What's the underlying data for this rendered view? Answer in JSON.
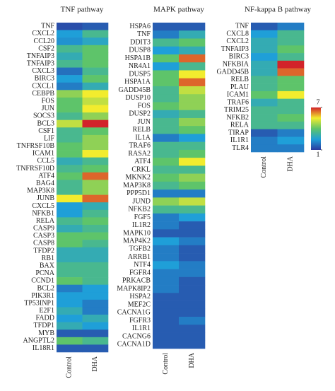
{
  "chart_data": [
    {
      "type": "heatmap",
      "title": "TNF pathway",
      "categories": [
        "TNF",
        "CXCL2",
        "CCL20",
        "CSF2",
        "TNFAIP3",
        "TNFAIP3",
        "CXCL3",
        "BIRC3",
        "CXCL1",
        "CEBPB",
        "FOS",
        "JUN",
        "SOCS3",
        "BCL3",
        "CSF1",
        "LIF",
        "TNFRSF10B",
        "ICAM1",
        "CCL5",
        "TNFRSF10D",
        "ATF4",
        "BAG4",
        "MAP3K8",
        "JUNB",
        "CXCL5",
        "NFKB1",
        "RELA",
        "CASP9",
        "CASP3",
        "CASP8",
        "TFDP2",
        "RB1",
        "BAX",
        "PCNA",
        "CCND1",
        "BCL2",
        "PIK3R1",
        "TP53INP1",
        "E2F1",
        "FADD",
        "TFDP1",
        "MYB",
        "ANGPTL2",
        "IL18R1"
      ],
      "series": [
        {
          "name": "Control",
          "values": [
            1.3,
            2.5,
            2.3,
            3.5,
            3,
            3.5,
            1.8,
            2.5,
            2,
            4.5,
            4,
            4,
            3.5,
            5,
            3.5,
            3.5,
            4,
            4,
            3,
            3.5,
            4,
            3.5,
            3.5,
            5.5,
            2.5,
            2.5,
            3.5,
            3,
            4,
            4,
            3,
            3,
            3.5,
            3.5,
            4,
            2,
            2.5,
            2.5,
            3,
            2.5,
            3,
            1.5,
            4,
            1.5
          ]
        },
        {
          "name": "DHA",
          "values": [
            1.5,
            3.5,
            2.8,
            4,
            4,
            4,
            3.5,
            4,
            3,
            5.5,
            5,
            5.5,
            4.5,
            7,
            4,
            4.5,
            4.5,
            5.5,
            3.5,
            4,
            6.5,
            4.5,
            4.5,
            6.5,
            3,
            3.5,
            4,
            3.5,
            4,
            3.5,
            3,
            3,
            3.5,
            3.5,
            3.5,
            2.5,
            2.5,
            2,
            2,
            3,
            2.5,
            1.5,
            3.5,
            1.5
          ]
        }
      ],
      "clim": [
        1,
        7
      ],
      "colormap": [
        "#2b3a9e",
        "#1f9fd8",
        "#5ec46a",
        "#f2ec2e",
        "#d2232a"
      ]
    },
    {
      "type": "heatmap",
      "title": "MAPK pathway",
      "categories": [
        "HSPA6",
        "TNF",
        "DDIT3",
        "DUSP8",
        "HSPA1B",
        "NR4A1",
        "DUSP5",
        "HSPA1A",
        "GADD45B",
        "DUSP10",
        "FOS",
        "DUSP2",
        "JUN",
        "RELB",
        "IL1A",
        "TRAF6",
        "RASA2",
        "ATF4",
        "CRKL",
        "MKNK2",
        "MAP3K8",
        "PPP5D1",
        "JUND",
        "NFKB2",
        "FGF5",
        "IL1R2",
        "MAPK10",
        "MAP4K2",
        "TGFB2",
        "ARRB1",
        "NTF4",
        "FGFR4",
        "PRKACB",
        "MAPK8IP2",
        "HSPA2",
        "MEF2C",
        "CACNA1G",
        "FGFR3",
        "IL1R1",
        "CACNG6",
        "CACNA1D"
      ],
      "series": [
        {
          "name": "Control",
          "values": [
            1.5,
            2,
            3.5,
            2.5,
            4,
            2.5,
            4,
            4,
            3.5,
            3.5,
            4,
            3,
            3.5,
            3.5,
            2,
            3.5,
            3.5,
            4,
            3.5,
            4,
            3.5,
            2,
            4.5,
            3.5,
            2,
            2,
            1.5,
            2.5,
            2,
            2,
            2.5,
            2,
            2,
            2,
            1.5,
            1.5,
            1.5,
            1.5,
            1.5,
            1.5,
            1.5
          ]
        },
        {
          "name": "DHA",
          "values": [
            1.5,
            3,
            4,
            3,
            6.5,
            3.5,
            5.5,
            6.5,
            5,
            4.5,
            4.5,
            3.5,
            4.5,
            4,
            2.5,
            3.5,
            4,
            5.5,
            3.5,
            4.5,
            4,
            2,
            5,
            3.5,
            2.5,
            1.5,
            1.5,
            2,
            1.5,
            1.5,
            2,
            2,
            1.5,
            1.5,
            1.5,
            1.5,
            1.5,
            2,
            1.5,
            1.5,
            1.5
          ]
        }
      ],
      "clim": [
        1,
        7
      ],
      "colormap": [
        "#2b3a9e",
        "#1f9fd8",
        "#5ec46a",
        "#f2ec2e",
        "#d2232a"
      ]
    },
    {
      "type": "heatmap",
      "title": "NF-kappa B pathway",
      "categories": [
        "TNF",
        "CXCL8",
        "CXCL2",
        "TNFAIP3",
        "BIRC3",
        "NFKBIA",
        "GADD45B",
        "RELB",
        "PLAU",
        "ICAM1",
        "TRAF6",
        "TRIM25",
        "NFKB2",
        "RELA",
        "TIRAP",
        "IL1R1",
        "TLR4"
      ],
      "series": [
        {
          "name": "Control",
          "values": [
            1.5,
            2.5,
            3,
            3,
            2.5,
            3,
            3,
            3.5,
            3.5,
            4,
            3,
            3.5,
            3.5,
            3.5,
            1.5,
            2,
            2
          ]
        },
        {
          "name": "DHA",
          "values": [
            2,
            3.5,
            3.5,
            4,
            3.5,
            7,
            6.5,
            4,
            4,
            5.5,
            3.5,
            3.5,
            4,
            3.5,
            2,
            2.5,
            2
          ]
        }
      ],
      "clim": [
        1,
        7
      ],
      "cticks": [
        7,
        1
      ],
      "colormap": [
        "#2b3a9e",
        "#1f9fd8",
        "#5ec46a",
        "#f2ec2e",
        "#d2232a"
      ]
    }
  ]
}
